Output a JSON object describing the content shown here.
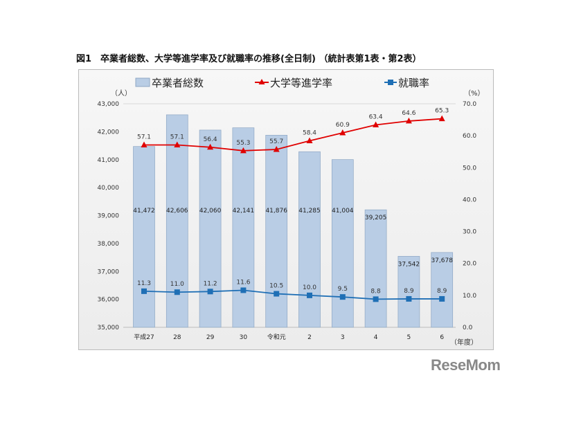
{
  "title": "図1　卒業者総数、大学等進学率及び就職率の推移(全日制) （統計表第1表・第2表）",
  "chart_data": {
    "type": "bar+line",
    "categories": [
      "平成27",
      "28",
      "29",
      "30",
      "令和元",
      "2",
      "3",
      "4",
      "5",
      "6"
    ],
    "xlabel": "（年度）",
    "ylabel_left": "（人）",
    "ylabel_right": "（%）",
    "ylim_left": [
      35000,
      43000
    ],
    "yticks_left": [
      "35,000",
      "36,000",
      "37,000",
      "38,000",
      "39,000",
      "40,000",
      "41,000",
      "42,000",
      "43,000"
    ],
    "ylim_right": [
      0,
      70
    ],
    "yticks_right": [
      "0.0",
      "10.0",
      "20.0",
      "30.0",
      "40.0",
      "50.0",
      "60.0",
      "70.0"
    ],
    "grid": false,
    "legend": "top",
    "series": [
      {
        "name": "卒業者総数",
        "type": "bar",
        "axis": "left",
        "color": "#b9cde5",
        "values": [
          41472,
          42606,
          42060,
          42141,
          41876,
          41285,
          41004,
          39205,
          37542,
          37678
        ],
        "labels": [
          "41,472",
          "42,606",
          "42,060",
          "42,141",
          "41,876",
          "41,285",
          "41,004",
          "39,205",
          "37,542",
          "37,678"
        ]
      },
      {
        "name": "大学等進学率",
        "type": "line",
        "marker": "triangle",
        "axis": "right",
        "color": "#e00000",
        "values": [
          57.1,
          57.1,
          56.4,
          55.3,
          55.7,
          58.4,
          60.9,
          63.4,
          64.6,
          65.3
        ]
      },
      {
        "name": "就職率",
        "type": "line",
        "marker": "square",
        "axis": "right",
        "color": "#1f6fb5",
        "values": [
          11.3,
          11.0,
          11.2,
          11.6,
          10.5,
          10.0,
          9.5,
          8.8,
          8.9,
          8.9
        ]
      }
    ]
  },
  "logo": "ReseMom"
}
